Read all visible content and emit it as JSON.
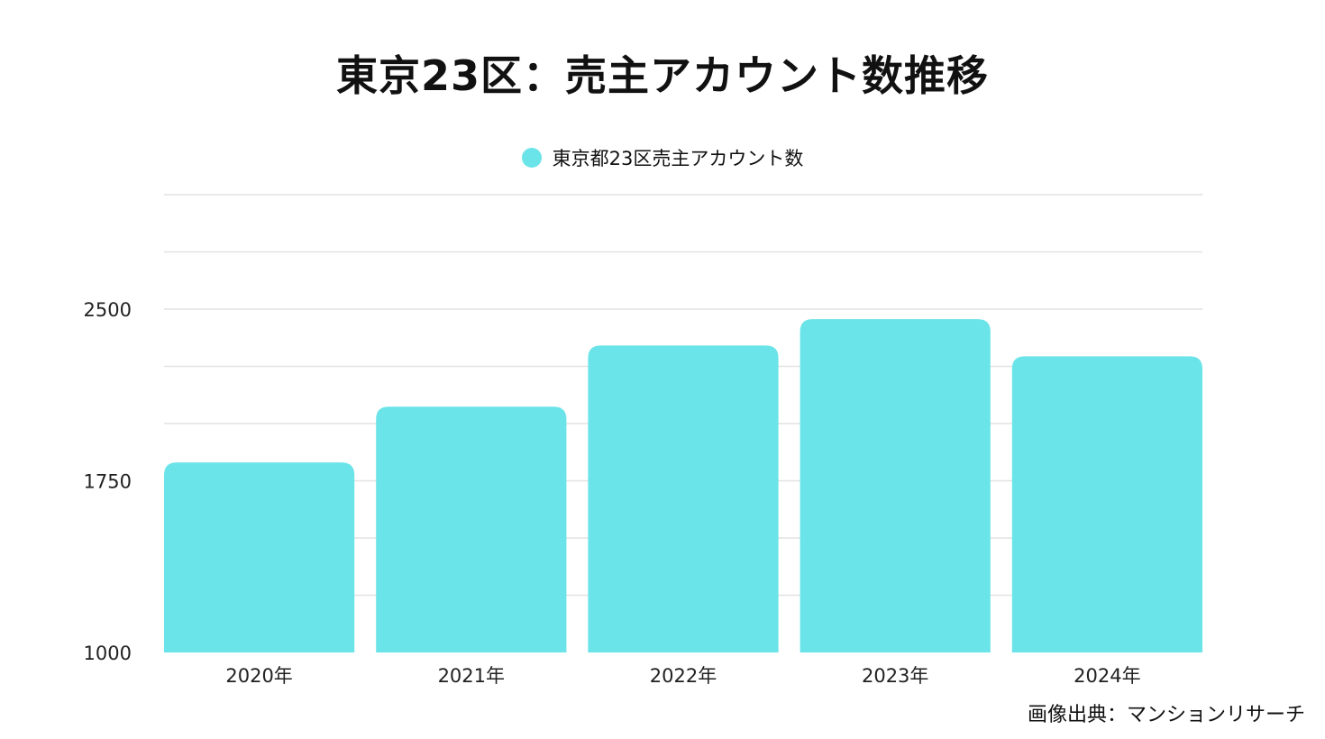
{
  "chart_data": {
    "type": "bar",
    "title": "東京23区：売主アカウント数推移",
    "legend": [
      "東京都23区売主アカウント数"
    ],
    "legend_position": "top-center",
    "categories": [
      "2020年",
      "2021年",
      "2022年",
      "2023年",
      "2024年"
    ],
    "series": [
      {
        "name": "東京都23区売主アカウント数",
        "values": [
          1830,
          2074,
          2341,
          2456,
          2294
        ]
      }
    ],
    "ylim": [
      1000,
      3000
    ],
    "yticks": [
      1000,
      1750,
      2500
    ],
    "grid_step": 250,
    "grid": true,
    "xlabel": "",
    "ylabel": "",
    "bar_color": "#6ae4e8"
  },
  "source": "画像出典：マンションリサーチ"
}
